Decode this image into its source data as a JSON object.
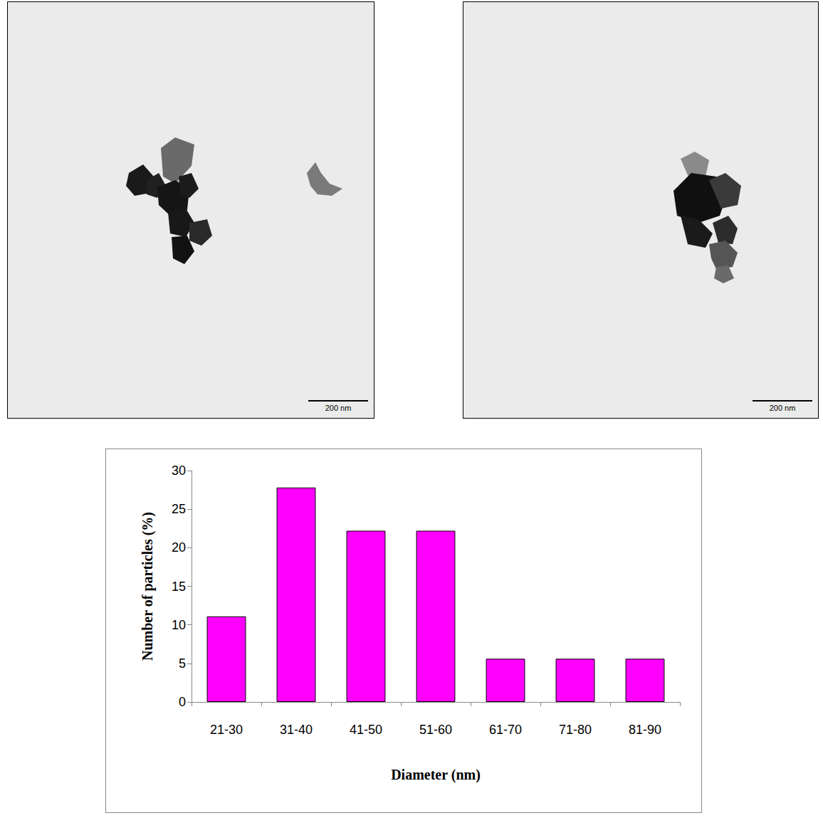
{
  "chart_data": {
    "type": "bar",
    "categories": [
      "21-30",
      "31-40",
      "41-50",
      "51-60",
      "61-70",
      "71-80",
      "81-90"
    ],
    "values": [
      11.1,
      27.8,
      22.2,
      22.2,
      5.6,
      5.6,
      5.6
    ],
    "color": "#ff00ff",
    "x_label": "Diameter (nm)",
    "y_label": "Number of particles (%)",
    "ylim": [
      0,
      30
    ],
    "yticks": [
      0,
      5,
      10,
      15,
      20,
      25,
      30
    ],
    "grid": false
  },
  "micrographs": [
    {
      "scale_bar": "200 nm"
    },
    {
      "scale_bar": "200 nm"
    }
  ]
}
